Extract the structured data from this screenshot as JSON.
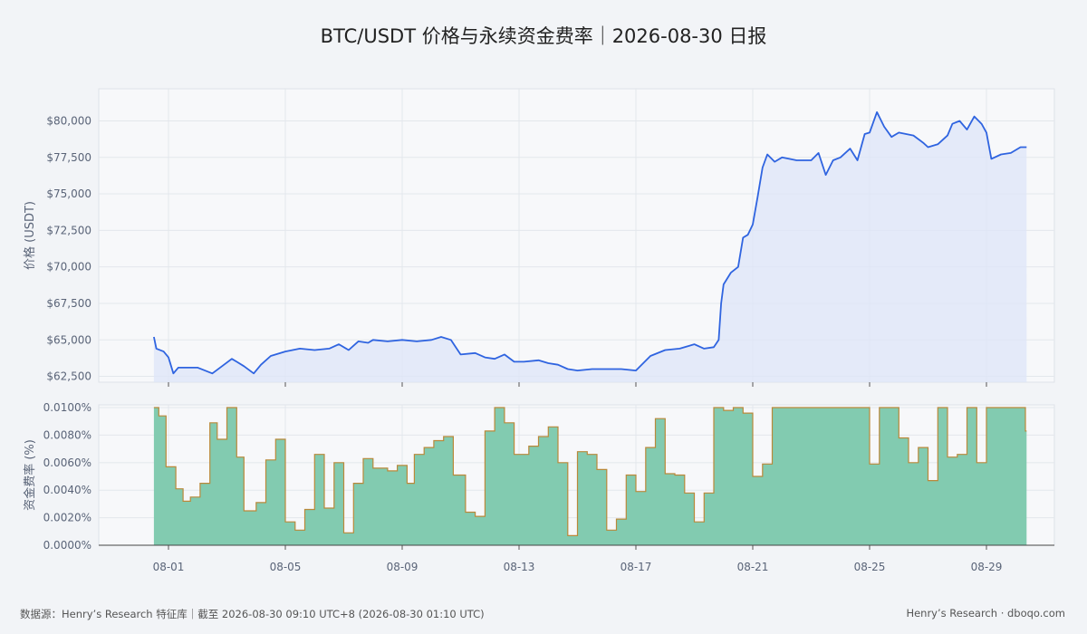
{
  "title": "BTC/USDT 价格与永续资金费率｜2026-08-30 日报",
  "footer": {
    "source": "数据源：Henry’s Research 特征库｜截至 2026-08-30 09:10 UTC+8 (2026-08-30 01:10 UTC)",
    "brand": "Henry’s Research · dboqo.com"
  },
  "chart_data": [
    {
      "type": "line",
      "ylabel": "价格 (USDT)",
      "x_unit": "date (2026)",
      "ylim": [
        62100,
        82200
      ],
      "yticks": [
        62500,
        65000,
        67500,
        70000,
        72500,
        75000,
        77500,
        80000
      ],
      "ytick_labels": [
        "$62,500",
        "$65,000",
        "$67,500",
        "$70,000",
        "$72,500",
        "$75,000",
        "$77,500",
        "$80,000"
      ],
      "xticks": [
        "08-01",
        "08-05",
        "08-09",
        "08-13",
        "08-17",
        "08-21",
        "08-25",
        "08-29"
      ],
      "x_range": [
        "07-31 12:00",
        "08-30 09:00"
      ],
      "grid": true,
      "area_fill": true,
      "color": "#2f64e0",
      "series": [
        {
          "points": [
            [
              "07-31 12:00",
              65200
            ],
            [
              "07-31 14:00",
              64400
            ],
            [
              "07-31 20:00",
              64200
            ],
            [
              "08-01 00:00",
              63800
            ],
            [
              "08-01 04:00",
              62700
            ],
            [
              "08-01 08:00",
              63100
            ],
            [
              "08-02 00:00",
              63100
            ],
            [
              "08-02 12:00",
              62700
            ],
            [
              "08-02 20:00",
              63200
            ],
            [
              "08-03 04:00",
              63700
            ],
            [
              "08-03 08:00",
              63500
            ],
            [
              "08-03 14:00",
              63200
            ],
            [
              "08-03 22:00",
              62700
            ],
            [
              "08-04 04:00",
              63300
            ],
            [
              "08-04 12:00",
              63900
            ],
            [
              "08-05 00:00",
              64200
            ],
            [
              "08-05 12:00",
              64400
            ],
            [
              "08-06 00:00",
              64300
            ],
            [
              "08-06 12:00",
              64400
            ],
            [
              "08-06 20:00",
              64700
            ],
            [
              "08-07 04:00",
              64300
            ],
            [
              "08-07 12:00",
              64900
            ],
            [
              "08-07 20:00",
              64800
            ],
            [
              "08-08 00:00",
              65000
            ],
            [
              "08-08 12:00",
              64900
            ],
            [
              "08-09 00:00",
              65000
            ],
            [
              "08-09 12:00",
              64900
            ],
            [
              "08-10 00:00",
              65000
            ],
            [
              "08-10 08:00",
              65200
            ],
            [
              "08-10 16:00",
              65000
            ],
            [
              "08-11 00:00",
              64000
            ],
            [
              "08-11 12:00",
              64100
            ],
            [
              "08-11 20:00",
              63800
            ],
            [
              "08-12 04:00",
              63700
            ],
            [
              "08-12 12:00",
              64000
            ],
            [
              "08-12 20:00",
              63500
            ],
            [
              "08-13 04:00",
              63500
            ],
            [
              "08-13 16:00",
              63600
            ],
            [
              "08-14 00:00",
              63400
            ],
            [
              "08-14 08:00",
              63300
            ],
            [
              "08-14 16:00",
              63000
            ],
            [
              "08-15 00:00",
              62900
            ],
            [
              "08-15 12:00",
              63000
            ],
            [
              "08-16 00:00",
              63000
            ],
            [
              "08-16 12:00",
              63000
            ],
            [
              "08-17 00:00",
              62900
            ],
            [
              "08-17 06:00",
              63400
            ],
            [
              "08-17 12:00",
              63900
            ],
            [
              "08-18 00:00",
              64300
            ],
            [
              "08-18 12:00",
              64400
            ],
            [
              "08-19 00:00",
              64700
            ],
            [
              "08-19 08:00",
              64400
            ],
            [
              "08-19 16:00",
              64500
            ],
            [
              "08-19 20:00",
              65000
            ],
            [
              "08-19 22:00",
              67500
            ],
            [
              "08-20 00:00",
              68800
            ],
            [
              "08-20 06:00",
              69600
            ],
            [
              "08-20 12:00",
              70000
            ],
            [
              "08-20 16:00",
              72000
            ],
            [
              "08-20 20:00",
              72200
            ],
            [
              "08-21 00:00",
              72900
            ],
            [
              "08-21 04:00",
              74800
            ],
            [
              "08-21 08:00",
              76800
            ],
            [
              "08-21 12:00",
              77700
            ],
            [
              "08-21 18:00",
              77200
            ],
            [
              "08-22 00:00",
              77500
            ],
            [
              "08-22 12:00",
              77300
            ],
            [
              "08-23 00:00",
              77300
            ],
            [
              "08-23 06:00",
              77800
            ],
            [
              "08-23 12:00",
              76300
            ],
            [
              "08-23 18:00",
              77300
            ],
            [
              "08-24 00:00",
              77500
            ],
            [
              "08-24 08:00",
              78100
            ],
            [
              "08-24 14:00",
              77300
            ],
            [
              "08-24 20:00",
              79100
            ],
            [
              "08-25 00:00",
              79200
            ],
            [
              "08-25 06:00",
              80600
            ],
            [
              "08-25 12:00",
              79600
            ],
            [
              "08-25 18:00",
              78900
            ],
            [
              "08-26 00:00",
              79200
            ],
            [
              "08-26 12:00",
              79000
            ],
            [
              "08-26 20:00",
              78500
            ],
            [
              "08-27 00:00",
              78200
            ],
            [
              "08-27 08:00",
              78400
            ],
            [
              "08-27 16:00",
              79000
            ],
            [
              "08-27 20:00",
              79800
            ],
            [
              "08-28 02:00",
              80000
            ],
            [
              "08-28 08:00",
              79400
            ],
            [
              "08-28 14:00",
              80300
            ],
            [
              "08-28 20:00",
              79800
            ],
            [
              "08-29 00:00",
              79200
            ],
            [
              "08-29 04:00",
              77400
            ],
            [
              "08-29 12:00",
              77700
            ],
            [
              "08-29 20:00",
              77800
            ],
            [
              "08-30 04:00",
              78200
            ],
            [
              "08-30 09:00",
              78200
            ]
          ]
        }
      ]
    },
    {
      "type": "area",
      "step": true,
      "ylabel": "资金费率 (%)",
      "ylim": [
        0,
        0.0102
      ],
      "yticks": [
        0,
        0.002,
        0.004,
        0.006,
        0.008,
        0.01
      ],
      "ytick_labels": [
        "0.0000%",
        "0.0020%",
        "0.0040%",
        "0.0060%",
        "0.0080%",
        "0.0100%"
      ],
      "xticks": [
        "08-01",
        "08-05",
        "08-09",
        "08-13",
        "08-17",
        "08-21",
        "08-25",
        "08-29"
      ],
      "grid": true,
      "fill_color": "#82cbb0",
      "line_color": "#b9893a",
      "series": [
        {
          "points": [
            [
              "07-31 12:00",
              0.01
            ],
            [
              "07-31 16:00",
              0.0094
            ],
            [
              "07-31 22:00",
              0.0057
            ],
            [
              "08-01 06:00",
              0.0041
            ],
            [
              "08-01 12:00",
              0.0032
            ],
            [
              "08-01 18:00",
              0.0035
            ],
            [
              "08-02 02:00",
              0.0045
            ],
            [
              "08-02 10:00",
              0.0089
            ],
            [
              "08-02 16:00",
              0.0077
            ],
            [
              "08-03 00:00",
              0.01
            ],
            [
              "08-03 08:00",
              0.0064
            ],
            [
              "08-03 14:00",
              0.0025
            ],
            [
              "08-04 00:00",
              0.0031
            ],
            [
              "08-04 08:00",
              0.0062
            ],
            [
              "08-04 16:00",
              0.0077
            ],
            [
              "08-05 00:00",
              0.0017
            ],
            [
              "08-05 08:00",
              0.0011
            ],
            [
              "08-05 16:00",
              0.0026
            ],
            [
              "08-06 00:00",
              0.0066
            ],
            [
              "08-06 08:00",
              0.0027
            ],
            [
              "08-06 16:00",
              0.006
            ],
            [
              "08-07 00:00",
              0.0009
            ],
            [
              "08-07 08:00",
              0.0045
            ],
            [
              "08-07 16:00",
              0.0063
            ],
            [
              "08-08 00:00",
              0.0056
            ],
            [
              "08-08 12:00",
              0.0054
            ],
            [
              "08-08 20:00",
              0.0058
            ],
            [
              "08-09 04:00",
              0.0045
            ],
            [
              "08-09 10:00",
              0.0066
            ],
            [
              "08-09 18:00",
              0.0071
            ],
            [
              "08-10 02:00",
              0.0076
            ],
            [
              "08-10 10:00",
              0.0079
            ],
            [
              "08-10 18:00",
              0.0051
            ],
            [
              "08-11 04:00",
              0.0024
            ],
            [
              "08-11 12:00",
              0.0021
            ],
            [
              "08-11 20:00",
              0.0083
            ],
            [
              "08-12 04:00",
              0.01
            ],
            [
              "08-12 12:00",
              0.0089
            ],
            [
              "08-12 20:00",
              0.0066
            ],
            [
              "08-13 08:00",
              0.0072
            ],
            [
              "08-13 16:00",
              0.0079
            ],
            [
              "08-14 00:00",
              0.0086
            ],
            [
              "08-14 08:00",
              0.006
            ],
            [
              "08-14 16:00",
              0.0007
            ],
            [
              "08-15 00:00",
              0.0068
            ],
            [
              "08-15 08:00",
              0.0066
            ],
            [
              "08-15 16:00",
              0.0055
            ],
            [
              "08-16 00:00",
              0.0011
            ],
            [
              "08-16 08:00",
              0.0019
            ],
            [
              "08-16 16:00",
              0.0051
            ],
            [
              "08-17 00:00",
              0.0039
            ],
            [
              "08-17 08:00",
              0.0071
            ],
            [
              "08-17 16:00",
              0.0092
            ],
            [
              "08-18 00:00",
              0.0052
            ],
            [
              "08-18 08:00",
              0.0051
            ],
            [
              "08-18 16:00",
              0.0038
            ],
            [
              "08-19 00:00",
              0.0017
            ],
            [
              "08-19 08:00",
              0.0038
            ],
            [
              "08-19 16:00",
              0.01
            ],
            [
              "08-20 00:00",
              0.0098
            ],
            [
              "08-20 08:00",
              0.01
            ],
            [
              "08-20 16:00",
              0.0096
            ],
            [
              "08-21 00:00",
              0.005
            ],
            [
              "08-21 08:00",
              0.0059
            ],
            [
              "08-21 16:00",
              0.01
            ],
            [
              "08-25 00:00",
              0.0059
            ],
            [
              "08-25 08:00",
              0.01
            ],
            [
              "08-26 00:00",
              0.0078
            ],
            [
              "08-26 08:00",
              0.006
            ],
            [
              "08-26 16:00",
              0.0071
            ],
            [
              "08-27 00:00",
              0.0047
            ],
            [
              "08-27 08:00",
              0.01
            ],
            [
              "08-27 16:00",
              0.0064
            ],
            [
              "08-28 00:00",
              0.0066
            ],
            [
              "08-28 08:00",
              0.01
            ],
            [
              "08-28 16:00",
              0.006
            ],
            [
              "08-29 00:00",
              0.01
            ],
            [
              "08-30 08:00",
              0.0083
            ],
            [
              "08-30 09:00",
              0.0083
            ]
          ]
        }
      ]
    }
  ]
}
